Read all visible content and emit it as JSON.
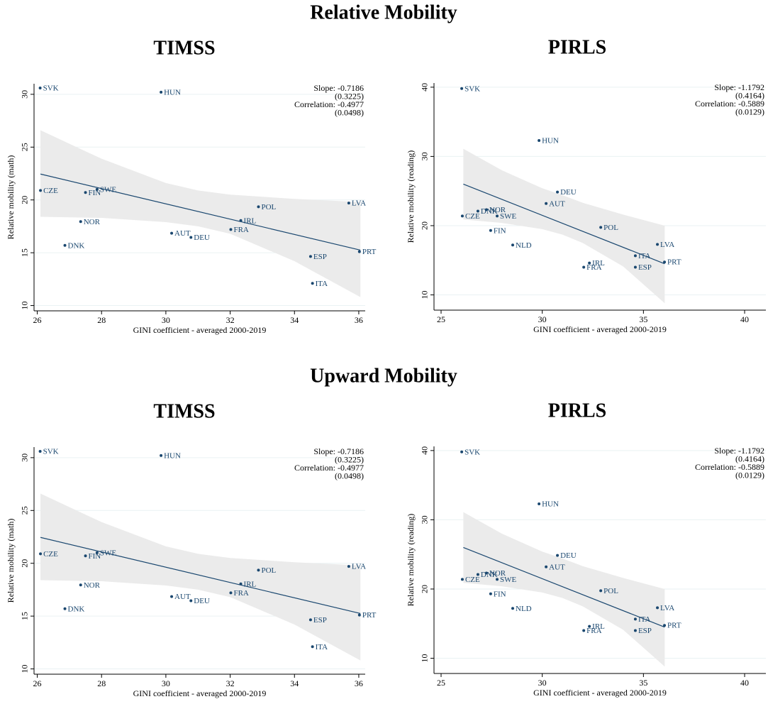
{
  "headings": [
    "Relative Mobility",
    "Upward Mobility"
  ],
  "chart_data": [
    {
      "type": "scatter",
      "title": "TIMSS",
      "x_label": "GINI coefficient - averaged 2000-2019",
      "y_label": "Relative mobility (math)",
      "categories": [
        "SVK",
        "HUN",
        "CZE",
        "FIN",
        "SWE",
        "NOR",
        "DNK",
        "AUT",
        "DEU",
        "FRA",
        "IRL",
        "POL",
        "LVA",
        "ESP",
        "ITA",
        "PRT"
      ],
      "x": [
        26.09,
        29.85,
        26.1,
        27.5,
        27.86,
        27.35,
        26.86,
        30.18,
        30.78,
        32.02,
        32.33,
        32.88,
        35.69,
        34.5,
        34.56,
        36.02
      ],
      "values": [
        30.6,
        30.2,
        20.9,
        20.7,
        21.0,
        17.95,
        15.7,
        16.85,
        16.45,
        17.2,
        18.05,
        19.35,
        19.7,
        14.65,
        12.1,
        15.1
      ],
      "color": "#1a476f",
      "xlim": [
        25.9,
        36.2
      ],
      "ylim": [
        9.5,
        31
      ],
      "xticks": [
        26,
        28,
        30,
        32,
        34,
        36
      ],
      "yticks": [
        10,
        15,
        20,
        25,
        30
      ],
      "grid": true,
      "fit": {
        "x": [
          26.1,
          36.05
        ],
        "values": [
          22.45,
          15.25
        ]
      },
      "band": {
        "x": [
          26.1,
          28,
          30,
          31,
          32,
          34,
          36.05
        ],
        "upper": [
          26.6,
          23.9,
          21.6,
          20.9,
          20.5,
          20.1,
          19.8
        ],
        "lower": [
          18.4,
          18.3,
          17.9,
          17.5,
          16.8,
          14.2,
          10.8
        ]
      },
      "annotations": [
        "Slope: -0.7186",
        "(0.3225)",
        "Correlation: -0.4977",
        "(0.0498)"
      ]
    },
    {
      "type": "scatter",
      "title": "PIRLS",
      "x_label": "GINI coefficient - averaged 2000-2019",
      "y_label": "Relative mobility (reading)",
      "categories": [
        "SVK",
        "HUN",
        "DEU",
        "AUT",
        "CZE",
        "DNK",
        "NOR",
        "SWE",
        "FIN",
        "NLD",
        "POL",
        "IRL",
        "FRA",
        "ITA",
        "ESP",
        "LVA",
        "PRT"
      ],
      "x": [
        26.02,
        29.84,
        30.75,
        30.19,
        26.05,
        26.82,
        27.24,
        27.77,
        27.45,
        28.54,
        32.89,
        32.33,
        32.05,
        34.6,
        34.6,
        35.69,
        36.04
      ],
      "values": [
        39.8,
        32.3,
        24.85,
        23.2,
        21.4,
        22.1,
        22.3,
        21.4,
        19.3,
        17.2,
        19.75,
        14.6,
        14.0,
        15.65,
        14.0,
        17.3,
        14.75
      ],
      "color": "#1a476f",
      "xlim": [
        24.65,
        41.05
      ],
      "ylim": [
        7.8,
        40.6
      ],
      "xticks": [
        25,
        30,
        35,
        40
      ],
      "yticks": [
        10,
        20,
        30,
        40
      ],
      "grid": true,
      "fit": {
        "x": [
          26.1,
          36.05
        ],
        "values": [
          26.0,
          14.5
        ]
      },
      "band": {
        "x": [
          26.1,
          28,
          30,
          31,
          32,
          34,
          36.05
        ],
        "upper": [
          31.1,
          28.0,
          25.4,
          24.4,
          23.3,
          21.6,
          20.0
        ],
        "lower": [
          20.9,
          20.4,
          19.5,
          18.7,
          17.5,
          14.1,
          8.8
        ]
      },
      "annotations": [
        "Slope: -1.1792",
        "(0.4164)",
        "Correlation: -0.5889",
        "(0.0129)"
      ]
    },
    {
      "type": "scatter",
      "title": "TIMSS",
      "x_label": "GINI coefficient - averaged 2000-2019",
      "y_label": "Relative mobility (math)",
      "categories": [
        "SVK",
        "HUN",
        "CZE",
        "FIN",
        "SWE",
        "NOR",
        "DNK",
        "AUT",
        "DEU",
        "FRA",
        "IRL",
        "POL",
        "LVA",
        "ESP",
        "ITA",
        "PRT"
      ],
      "x": [
        26.09,
        29.85,
        26.1,
        27.5,
        27.86,
        27.35,
        26.86,
        30.18,
        30.78,
        32.02,
        32.33,
        32.88,
        35.69,
        34.5,
        34.56,
        36.02
      ],
      "values": [
        30.6,
        30.2,
        20.9,
        20.7,
        21.0,
        17.95,
        15.7,
        16.85,
        16.45,
        17.2,
        18.05,
        19.35,
        19.7,
        14.65,
        12.1,
        15.1
      ],
      "color": "#1a476f",
      "xlim": [
        25.9,
        36.2
      ],
      "ylim": [
        9.5,
        31
      ],
      "xticks": [
        26,
        28,
        30,
        32,
        34,
        36
      ],
      "yticks": [
        10,
        15,
        20,
        25,
        30
      ],
      "grid": true,
      "fit": {
        "x": [
          26.1,
          36.05
        ],
        "values": [
          22.45,
          15.25
        ]
      },
      "band": {
        "x": [
          26.1,
          28,
          30,
          31,
          32,
          34,
          36.05
        ],
        "upper": [
          26.6,
          23.9,
          21.6,
          20.9,
          20.5,
          20.1,
          19.8
        ],
        "lower": [
          18.4,
          18.3,
          17.9,
          17.5,
          16.8,
          14.2,
          10.8
        ]
      },
      "annotations": [
        "Slope: -0.7186",
        "(0.3225)",
        "Correlation: -0.4977",
        "(0.0498)"
      ]
    },
    {
      "type": "scatter",
      "title": "PIRLS",
      "x_label": "GINI coefficient - averaged 2000-2019",
      "y_label": "Relative mobility (reading)",
      "categories": [
        "SVK",
        "HUN",
        "DEU",
        "AUT",
        "CZE",
        "DNK",
        "NOR",
        "SWE",
        "FIN",
        "NLD",
        "POL",
        "IRL",
        "FRA",
        "ITA",
        "ESP",
        "LVA",
        "PRT"
      ],
      "x": [
        26.02,
        29.84,
        30.75,
        30.19,
        26.05,
        26.82,
        27.24,
        27.77,
        27.45,
        28.54,
        32.89,
        32.33,
        32.05,
        34.6,
        34.6,
        35.69,
        36.04
      ],
      "values": [
        39.8,
        32.3,
        24.85,
        23.2,
        21.4,
        22.1,
        22.3,
        21.4,
        19.3,
        17.2,
        19.75,
        14.6,
        14.0,
        15.65,
        14.0,
        17.3,
        14.75
      ],
      "color": "#1a476f",
      "xlim": [
        24.65,
        41.05
      ],
      "ylim": [
        7.8,
        40.6
      ],
      "xticks": [
        25,
        30,
        35,
        40
      ],
      "yticks": [
        10,
        20,
        30,
        40
      ],
      "grid": true,
      "fit": {
        "x": [
          26.1,
          36.05
        ],
        "values": [
          26.0,
          14.5
        ]
      },
      "band": {
        "x": [
          26.1,
          28,
          30,
          31,
          32,
          34,
          36.05
        ],
        "upper": [
          31.1,
          28.0,
          25.4,
          24.4,
          23.3,
          21.6,
          20.0
        ],
        "lower": [
          20.9,
          20.4,
          19.5,
          18.7,
          17.5,
          14.1,
          8.8
        ]
      },
      "annotations": [
        "Slope: -1.1792",
        "(0.4164)",
        "Correlation: -0.5889",
        "(0.0129)"
      ]
    }
  ]
}
